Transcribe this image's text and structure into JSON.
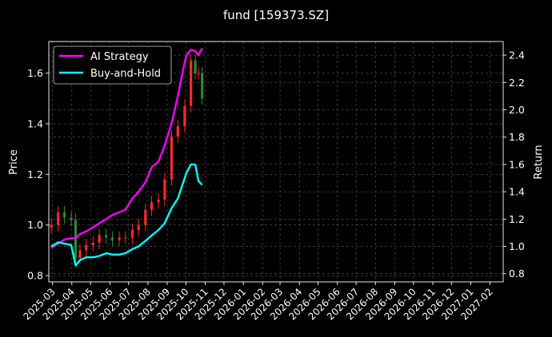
{
  "chart_data": {
    "type": "line",
    "title": "fund [159373.SZ]",
    "ylabel_left": "Price",
    "ylabel_right": "Return",
    "xlabel": "",
    "grid": true,
    "legend_position": "top-left",
    "ylim_left": [
      0.775,
      1.725
    ],
    "ylim_right": [
      0.74,
      2.5
    ],
    "xlim": [
      "2025-02-23",
      "2027-02-22"
    ],
    "yticks_left": [
      "0.8",
      "1.0",
      "1.2",
      "1.4",
      "1.6"
    ],
    "yticks_right": [
      "1.0",
      "1.2",
      "1.4",
      "1.6",
      "1.8",
      "2.0",
      "2.2",
      "2.4"
    ],
    "yticks_right_extra": [
      "0.8"
    ],
    "xticks": [
      "2025-03",
      "2025-04",
      "2025-05",
      "2025-06",
      "2025-07",
      "2025-08",
      "2025-09",
      "2025-10",
      "2025-11",
      "2025-12",
      "2026-01",
      "2026-02",
      "2026-03",
      "2026-04",
      "2026-05",
      "2026-06",
      "2026-07",
      "2026-08",
      "2026-09",
      "2026-10",
      "2026-11",
      "2026-12",
      "2027-01",
      "2027-02"
    ],
    "candles": {
      "up_color": "#ff2a2a",
      "down_color": "#2e8b2e",
      "dates": [
        "2025-02-27",
        "2025-03-10",
        "2025-03-20",
        "2025-03-31",
        "2025-04-07",
        "2025-04-14",
        "2025-04-24",
        "2025-05-05",
        "2025-05-15",
        "2025-05-26",
        "2025-06-05",
        "2025-06-16",
        "2025-06-26",
        "2025-07-07",
        "2025-07-17",
        "2025-07-28",
        "2025-08-07",
        "2025-08-18",
        "2025-08-28",
        "2025-09-08",
        "2025-09-18",
        "2025-09-29",
        "2025-10-09",
        "2025-10-16",
        "2025-10-21",
        "2025-10-27"
      ],
      "close": [
        1.0,
        1.05,
        1.03,
        1.02,
        0.87,
        0.9,
        0.92,
        0.93,
        0.96,
        0.95,
        0.94,
        0.95,
        0.95,
        0.98,
        1.0,
        1.06,
        1.09,
        1.1,
        1.18,
        1.35,
        1.39,
        1.47,
        1.65,
        1.6,
        1.6,
        1.5
      ]
    },
    "series": [
      {
        "name": "AI Strategy",
        "color": "#ff00ff",
        "x": [
          "2025-02-27",
          "2025-03-10",
          "2025-03-20",
          "2025-03-31",
          "2025-04-07",
          "2025-04-14",
          "2025-04-24",
          "2025-05-05",
          "2025-05-15",
          "2025-05-26",
          "2025-06-05",
          "2025-06-16",
          "2025-06-26",
          "2025-07-07",
          "2025-07-17",
          "2025-07-28",
          "2025-08-07",
          "2025-08-18",
          "2025-08-28",
          "2025-09-08",
          "2025-09-18",
          "2025-09-29",
          "2025-10-02",
          "2025-10-09",
          "2025-10-16",
          "2025-10-21",
          "2025-10-27"
        ],
        "values": [
          0.99,
          1.02,
          1.05,
          1.06,
          1.06,
          1.09,
          1.11,
          1.14,
          1.17,
          1.2,
          1.23,
          1.25,
          1.27,
          1.35,
          1.4,
          1.47,
          1.58,
          1.62,
          1.74,
          1.9,
          2.1,
          2.35,
          2.4,
          2.44,
          2.43,
          2.4,
          2.45
        ]
      },
      {
        "name": "Buy-and-Hold",
        "color": "#00ffff",
        "x": [
          "2025-02-27",
          "2025-03-10",
          "2025-03-20",
          "2025-03-31",
          "2025-04-07",
          "2025-04-14",
          "2025-04-24",
          "2025-05-05",
          "2025-05-15",
          "2025-05-26",
          "2025-06-05",
          "2025-06-16",
          "2025-06-26",
          "2025-07-07",
          "2025-07-17",
          "2025-07-28",
          "2025-08-07",
          "2025-08-18",
          "2025-08-28",
          "2025-09-08",
          "2025-09-18",
          "2025-09-29",
          "2025-10-02",
          "2025-10-09",
          "2025-10-16",
          "2025-10-21",
          "2025-10-27"
        ],
        "values": [
          1.0,
          1.03,
          1.02,
          1.01,
          0.86,
          0.9,
          0.92,
          0.92,
          0.93,
          0.95,
          0.94,
          0.94,
          0.95,
          0.98,
          1.0,
          1.04,
          1.08,
          1.12,
          1.17,
          1.28,
          1.35,
          1.5,
          1.54,
          1.6,
          1.6,
          1.48,
          1.45
        ]
      }
    ]
  }
}
